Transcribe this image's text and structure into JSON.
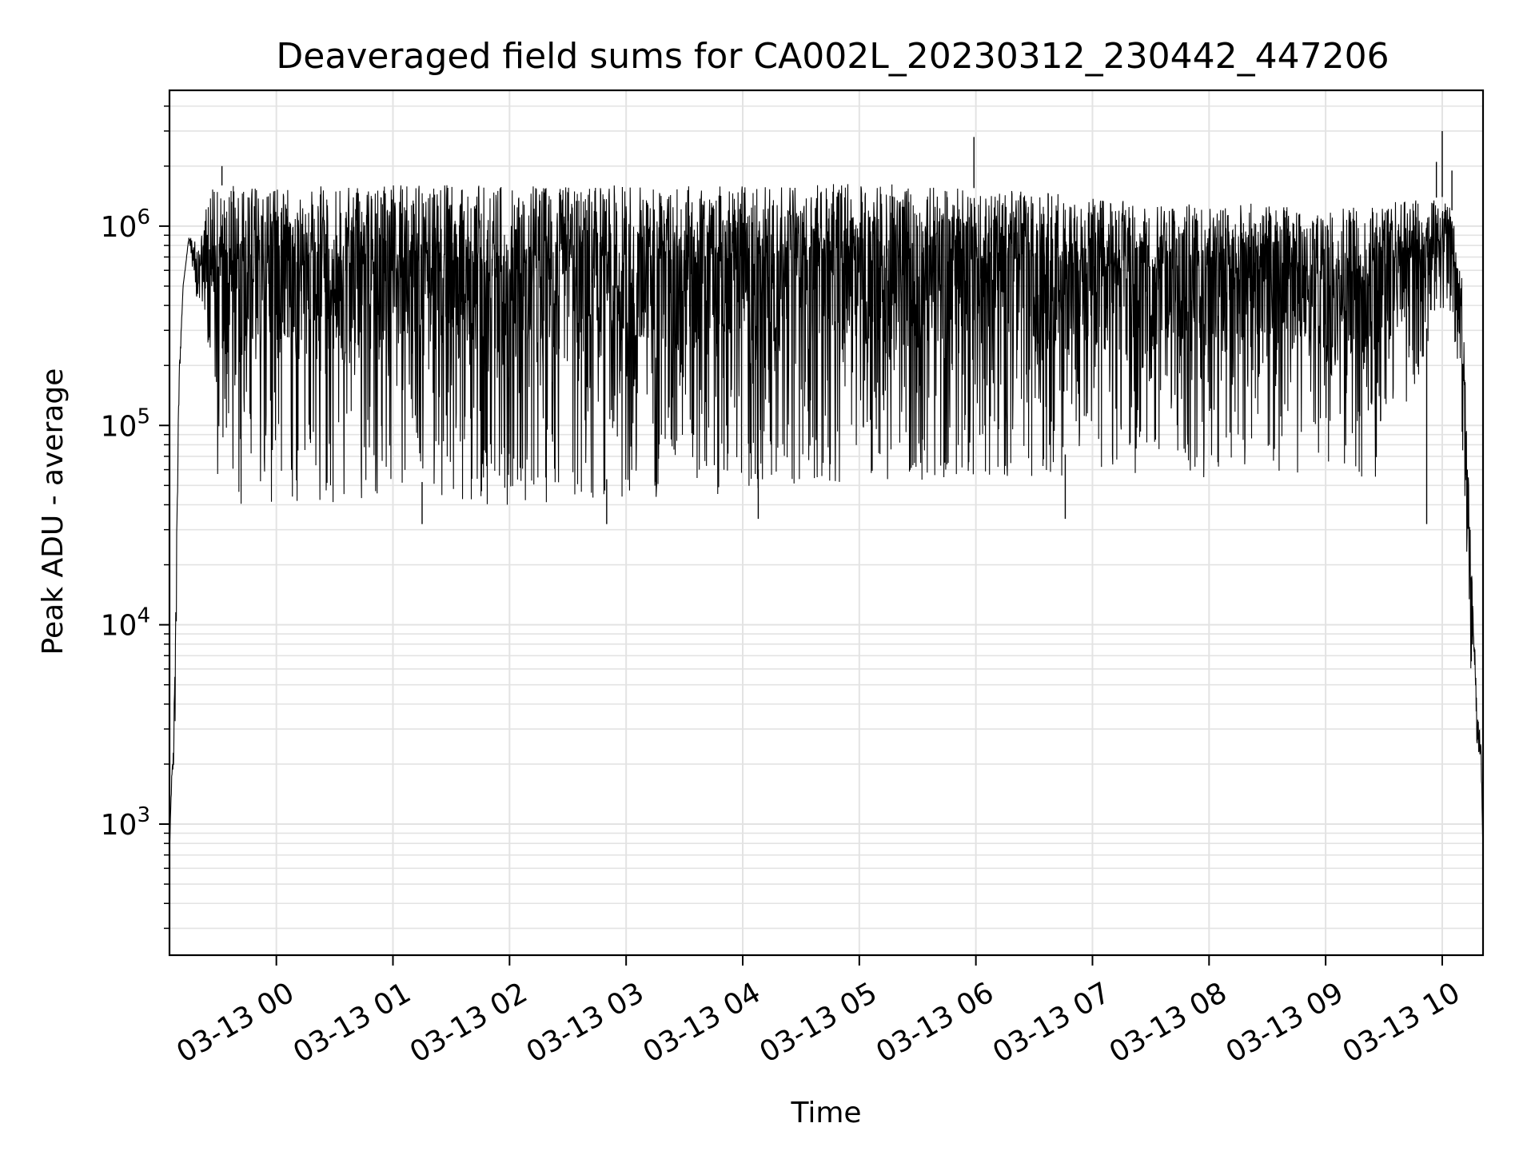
{
  "chart_data": {
    "type": "line",
    "title": "Deaveraged field sums for CA002L_20230312_230442_447206",
    "xlabel": "Time",
    "ylabel": "Peak ADU - average",
    "yscale": "log",
    "ylim": [
      220,
      4800000
    ],
    "xlim": [
      "03-12 23:05",
      "03-13 10:21"
    ],
    "grid": true,
    "x_tick_labels": [
      "03-13 00",
      "03-13 01",
      "03-13 02",
      "03-13 03",
      "03-13 04",
      "03-13 05",
      "03-13 06",
      "03-13 07",
      "03-13 08",
      "03-13 09",
      "03-13 10"
    ],
    "y_ticks": [
      {
        "base": "10",
        "exp": "3",
        "value": 1000
      },
      {
        "base": "10",
        "exp": "4",
        "value": 10000
      },
      {
        "base": "10",
        "exp": "5",
        "value": 100000
      },
      {
        "base": "10",
        "exp": "6",
        "value": 1000000
      }
    ],
    "series": [
      {
        "color": "#000000",
        "note_envelope": "rapidly oscillating signal",
        "x": [
          "03-12 23:05",
          "03-12 23:06",
          "03-12 23:07",
          "03-12 23:08",
          "03-12 23:09",
          "03-12 23:10",
          "03-12 23:12",
          "03-12 23:15",
          "03-12 23:20",
          "03-12 23:25",
          "03-12 23:30",
          "03-12 23:35",
          "03-12 23:40",
          "03-12 23:45",
          "03-12 23:50",
          "03-12 23:55",
          "03-13 00:00",
          "03-13 00:30",
          "03-13 01:00",
          "03-13 01:30",
          "03-13 02:00",
          "03-13 02:30",
          "03-13 03:00",
          "03-13 03:30",
          "03-13 04:00",
          "03-13 04:30",
          "03-13 05:00",
          "03-13 05:30",
          "03-13 06:00",
          "03-13 06:30",
          "03-13 07:00",
          "03-13 07:30",
          "03-13 08:00",
          "03-13 08:30",
          "03-13 09:00",
          "03-13 09:30",
          "03-13 10:00",
          "03-13 10:05",
          "03-13 10:10",
          "03-13 10:15",
          "03-13 10:18",
          "03-13 10:20",
          "03-13 10:21"
        ],
        "upper": [
          700,
          1700,
          2500,
          9000,
          60000,
          200000,
          500000,
          900000,
          800000,
          1600000,
          1600000,
          1600000,
          1600000,
          1600000,
          1600000,
          1550000,
          1550000,
          1600000,
          1600000,
          1650000,
          1600000,
          1600000,
          1600000,
          1600000,
          1600000,
          1600000,
          1650000,
          1600000,
          1550000,
          1500000,
          1400000,
          1300000,
          1300000,
          1300000,
          1200000,
          1300000,
          1400000,
          1200000,
          600000,
          20000,
          4000,
          2500,
          700
        ],
        "lower": [
          700,
          1400,
          1800,
          2000,
          30000,
          150000,
          500000,
          850000,
          350000,
          150000,
          50000,
          40000,
          38000,
          38000,
          40000,
          40000,
          40000,
          40000,
          40000,
          40000,
          40000,
          40000,
          42000,
          45000,
          45000,
          50000,
          52000,
          52000,
          55000,
          55000,
          55000,
          55000,
          55000,
          55000,
          55000,
          55000,
          400000,
          300000,
          100000,
          5000,
          2500,
          2000,
          700
        ],
        "spikes": [
          {
            "x": "03-13 05:59",
            "y": 2800000
          },
          {
            "x": "03-13 10:00",
            "y": 3000000
          },
          {
            "x": "03-12 23:32",
            "y": 2000000
          },
          {
            "x": "03-13 09:57",
            "y": 2100000
          },
          {
            "x": "03-13 10:05",
            "y": 1900000
          },
          {
            "x": "03-13 04:08",
            "y": 34000
          },
          {
            "x": "03-13 09:52",
            "y": 32000
          },
          {
            "x": "03-13 06:46",
            "y": 34000
          },
          {
            "x": "03-13 02:50",
            "y": 32000
          },
          {
            "x": "03-13 01:15",
            "y": 32000
          }
        ]
      }
    ]
  }
}
